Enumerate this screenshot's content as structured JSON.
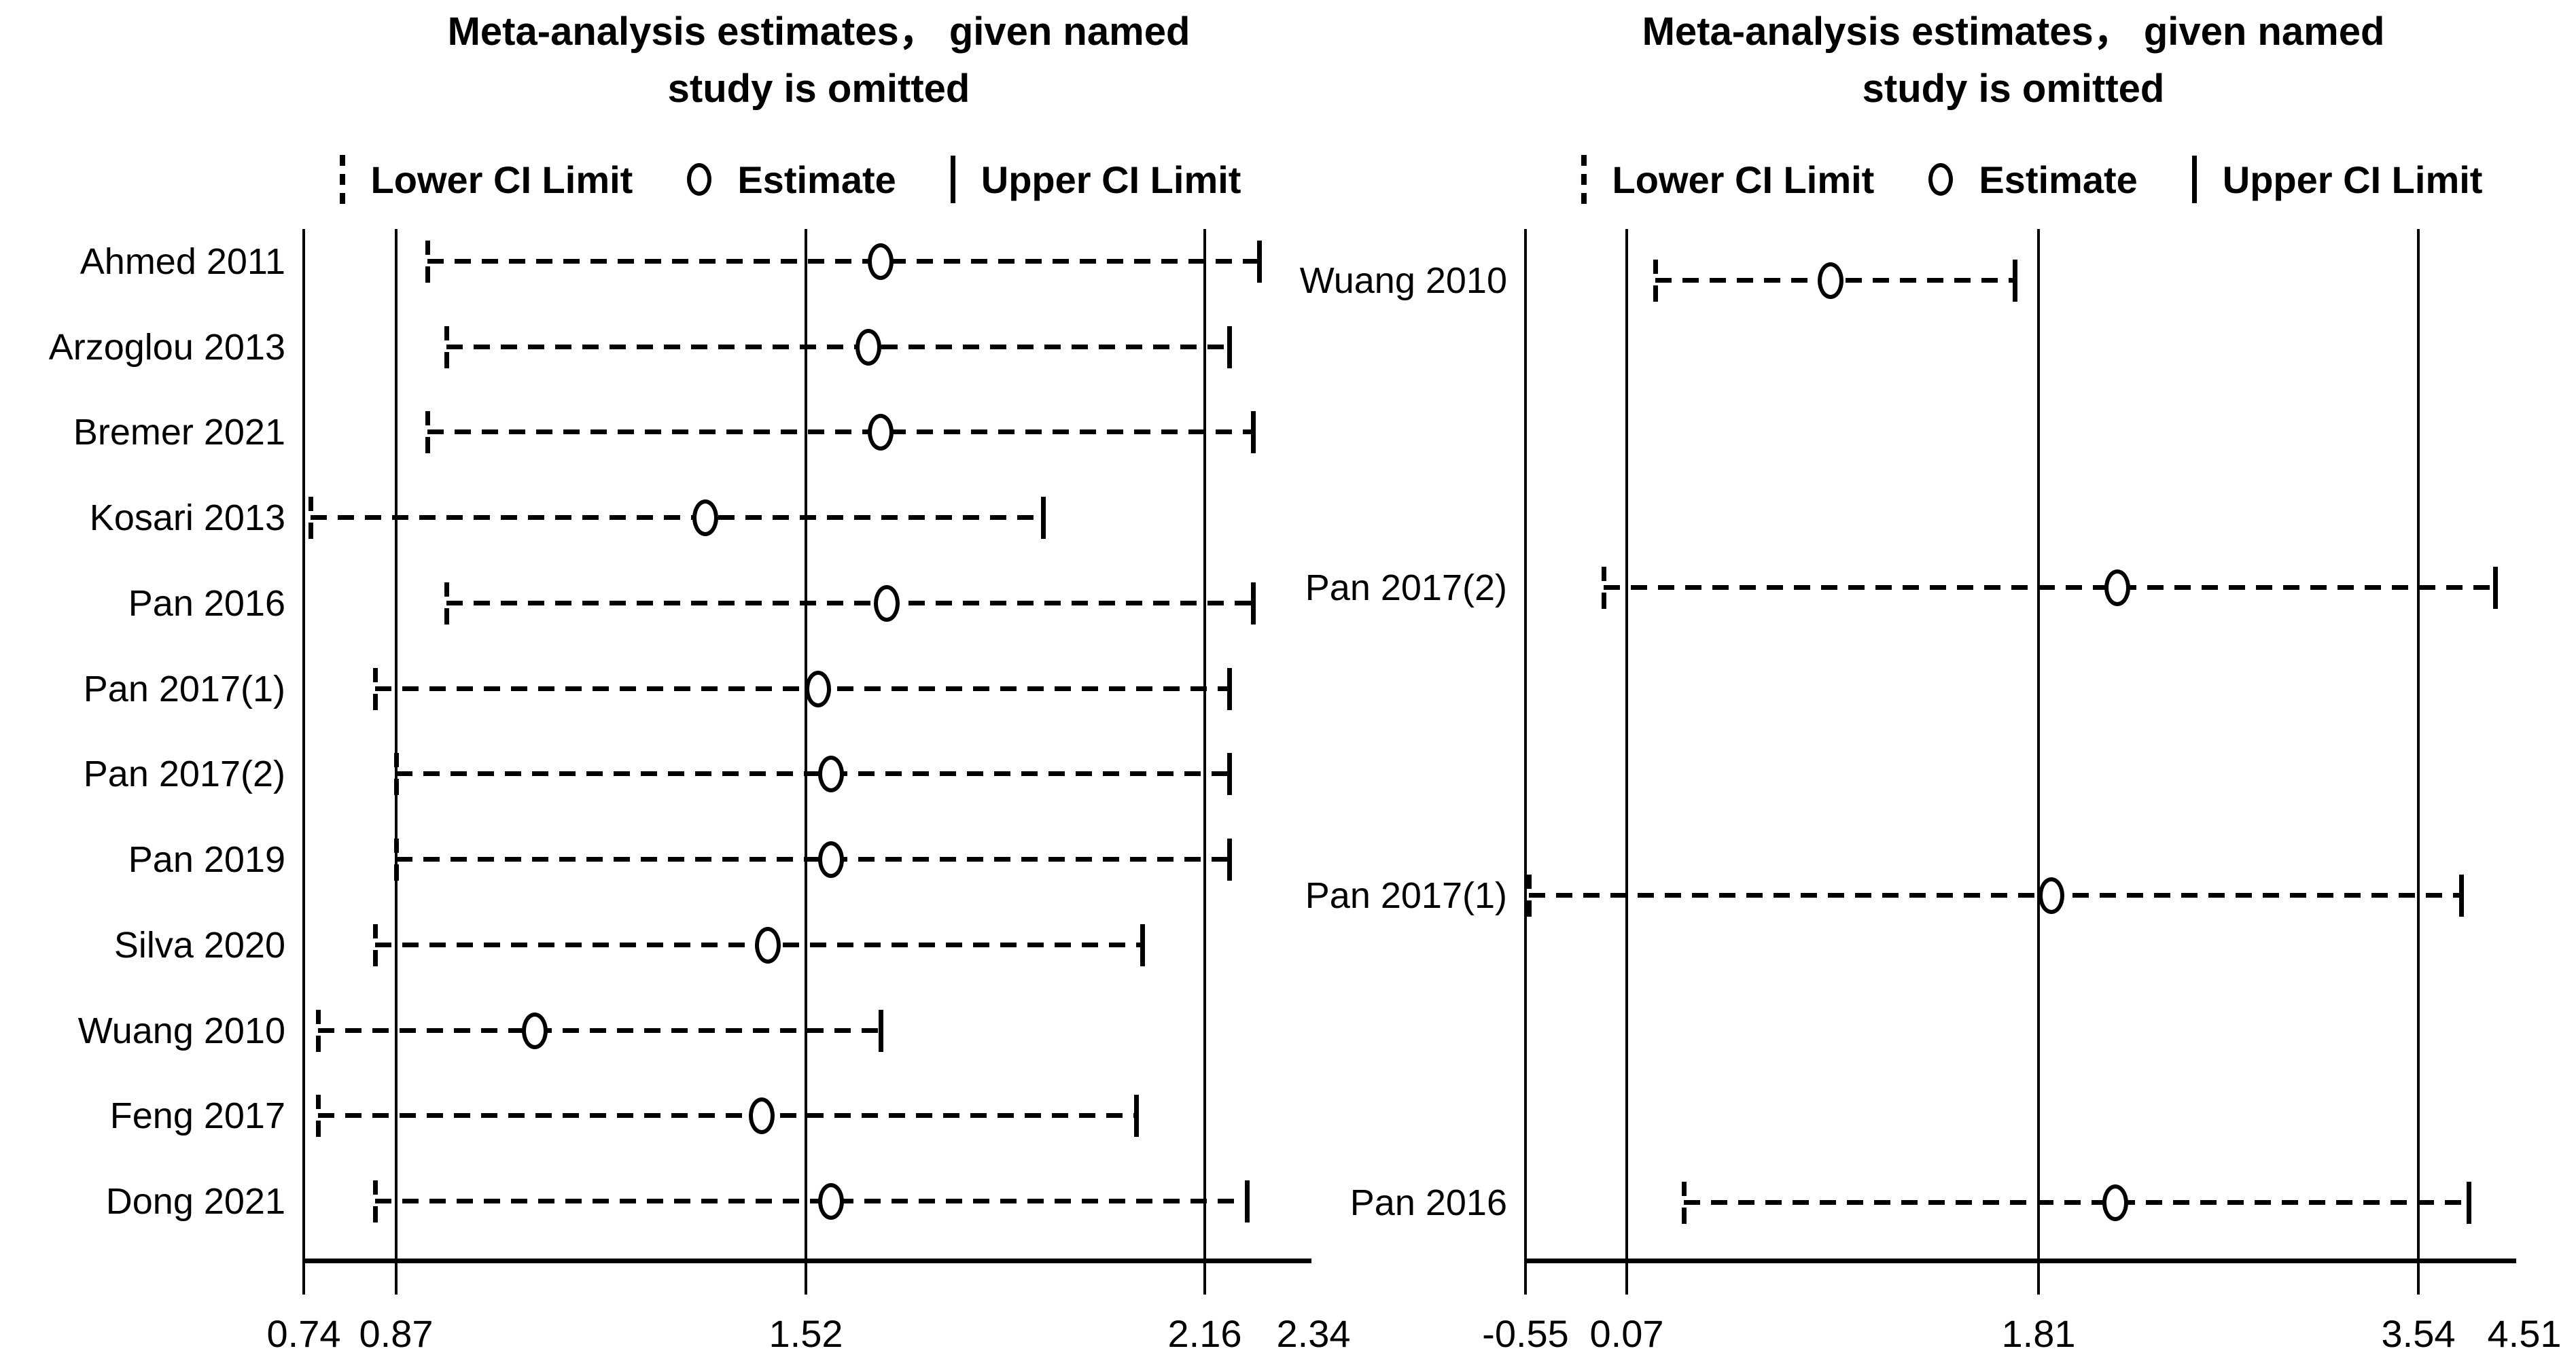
{
  "chart_data": [
    {
      "type": "forest",
      "panel": "left",
      "title": "Meta-analysis estimates，  given named study is omitted",
      "title_lines": [
        "Meta-analysis estimates，  given named",
        "study is omitted"
      ],
      "legend": [
        {
          "icon": "dashed-bar-icon",
          "label": "Lower CI Limit"
        },
        {
          "icon": "circle-icon",
          "label": "Estimate"
        },
        {
          "icon": "solid-bar-icon",
          "label": "Upper CI Limit"
        }
      ],
      "legend_position": "top-center",
      "grid": false,
      "xlim": [
        0.74,
        2.34
      ],
      "x_tick_values": [
        0.74,
        0.87,
        1.52,
        2.16,
        2.34
      ],
      "x_tick_labels": [
        "0.74",
        "0.87",
        "1.52",
        "2.16",
        "2.34"
      ],
      "reference_line_values": [
        0.74,
        0.87,
        1.52,
        2.16
      ],
      "pooled_lower": 0.87,
      "pooled_estimate": 1.52,
      "pooled_upper": 2.16,
      "studies": [
        {
          "label": "Ahmed 2011",
          "lower": 0.92,
          "estimate": 1.64,
          "upper": 2.25
        },
        {
          "label": "Arzoglou 2013",
          "lower": 0.95,
          "estimate": 1.62,
          "upper": 2.2
        },
        {
          "label": "Bremer 2021",
          "lower": 0.92,
          "estimate": 1.64,
          "upper": 2.24
        },
        {
          "label": "Kosari 2013",
          "lower": 0.75,
          "estimate": 1.36,
          "upper": 1.9
        },
        {
          "label": "Pan 2016",
          "lower": 0.95,
          "estimate": 1.65,
          "upper": 2.24
        },
        {
          "label": "Pan 2017(1)",
          "lower": 0.84,
          "estimate": 1.54,
          "upper": 2.2
        },
        {
          "label": "Pan 2017(2)",
          "lower": 0.87,
          "estimate": 1.56,
          "upper": 2.2
        },
        {
          "label": "Pan 2019",
          "lower": 0.87,
          "estimate": 1.56,
          "upper": 2.2
        },
        {
          "label": "Silva 2020",
          "lower": 0.84,
          "estimate": 1.46,
          "upper": 2.06
        },
        {
          "label": "Wuang 2010",
          "lower": 0.76,
          "estimate": 1.09,
          "upper": 1.64
        },
        {
          "label": "Feng 2017",
          "lower": 0.76,
          "estimate": 1.45,
          "upper": 2.05
        },
        {
          "label": "Dong 2021",
          "lower": 0.84,
          "estimate": 1.56,
          "upper": 2.23
        }
      ]
    },
    {
      "type": "forest",
      "panel": "right",
      "title": "Meta-analysis estimates，  given named study is omitted",
      "title_lines": [
        "Meta-analysis estimates，  given named",
        "study is omitted"
      ],
      "legend": [
        {
          "icon": "dashed-bar-icon",
          "label": "Lower CI Limit"
        },
        {
          "icon": "circle-icon",
          "label": "Estimate"
        },
        {
          "icon": "solid-bar-icon",
          "label": "Upper CI Limit"
        }
      ],
      "legend_position": "top-center",
      "grid": false,
      "xlim": [
        -0.55,
        4.51
      ],
      "x_tick_values": [
        -0.55,
        0.07,
        1.81,
        3.54,
        4.51
      ],
      "x_tick_labels": [
        "-0.55",
        "0.07",
        "1.81",
        "3.54",
        "4.51"
      ],
      "reference_line_values": [
        -0.55,
        0.07,
        1.81,
        3.54
      ],
      "pooled_lower": 0.07,
      "pooled_estimate": 1.81,
      "pooled_upper": 3.54,
      "studies": [
        {
          "label": "Wuang 2010",
          "lower": 0.19,
          "estimate": 0.93,
          "upper": 1.71
        },
        {
          "label": "Pan 2017(2)",
          "lower": -0.07,
          "estimate": 2.17,
          "upper": 4.24
        },
        {
          "label": "Pan 2017(1)",
          "lower": -0.53,
          "estimate": 1.87,
          "upper": 3.93
        },
        {
          "label": "Pan 2016",
          "lower": 0.31,
          "estimate": 2.16,
          "upper": 4.0
        }
      ]
    }
  ]
}
